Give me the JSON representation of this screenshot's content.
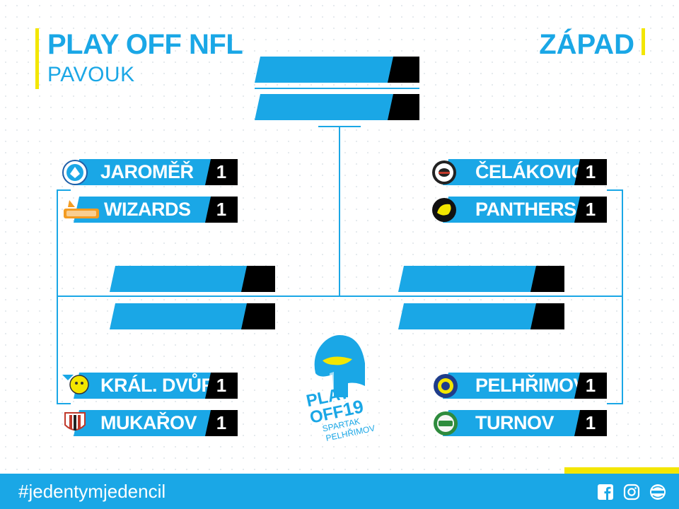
{
  "header": {
    "title": "PLAY OFF NFL",
    "subtitle": "PAVOUK",
    "region": "ZÁPAD"
  },
  "matches": {
    "left_top": [
      {
        "team": "JAROMĚŘ",
        "score": "1"
      },
      {
        "team": "WIZARDS",
        "score": "1"
      }
    ],
    "right_top": [
      {
        "team": "ČELÁKOVICE",
        "score": "1"
      },
      {
        "team": "PANTHERS",
        "score": "1"
      }
    ],
    "left_bottom": [
      {
        "team": "KRÁL. DVŮR",
        "score": "1"
      },
      {
        "team": "MUKAŘOV",
        "score": "1"
      }
    ],
    "right_bottom": [
      {
        "team": "PELHŘIMOV",
        "score": "1"
      },
      {
        "team": "TURNOV",
        "score": "1"
      }
    ]
  },
  "center_logo": {
    "line1": "PLAY",
    "line2": "OFF",
    "year": "19",
    "line3": "SPARTAK",
    "line4": "PELHŘIMOV"
  },
  "footer": {
    "hashtag": "#jedentymjedencil",
    "icons": [
      "facebook-icon",
      "instagram-icon",
      "web-icon"
    ]
  },
  "colors": {
    "accent": "#1aa7e6",
    "highlight": "#f3e600",
    "score_bg": "#000000"
  }
}
